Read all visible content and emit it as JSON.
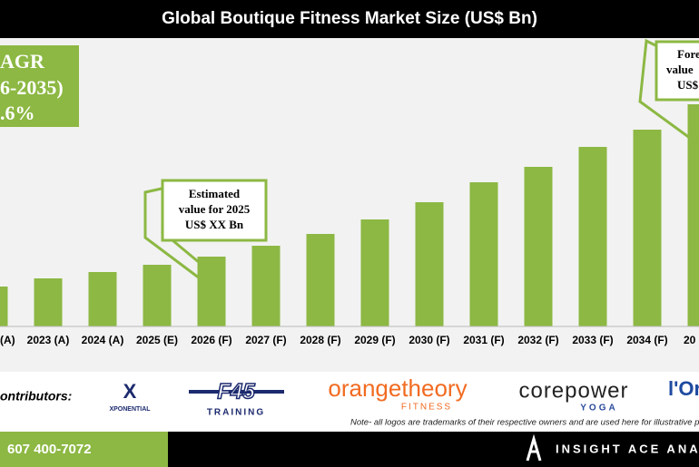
{
  "chart_data": {
    "type": "bar",
    "title": "Global Boutique Fitness Market Size (US$ Bn)",
    "categories": [
      "(A)",
      "2023 (A)",
      "2024 (A)",
      "2025 (E)",
      "2026 (F)",
      "2027 (F)",
      "2028 (F)",
      "2029 (F)",
      "2030 (F)",
      "2031 (F)",
      "2032 (F)",
      "2033 (F)",
      "2034 (F)",
      "20"
    ],
    "values": [
      44,
      53,
      60,
      68,
      77,
      89,
      102,
      118,
      137,
      159,
      176,
      198,
      217,
      245
    ],
    "color": "#8cb843",
    "ylim": [
      0,
      260
    ]
  },
  "cagr_box": {
    "lines": [
      "AGR",
      "6-2035)",
      ".6%"
    ]
  },
  "callouts": [
    {
      "lines": [
        "Estimated",
        "value for 2025",
        "US$ XX Bn"
      ]
    },
    {
      "lines": [
        "Fore",
        "value",
        "US$"
      ]
    }
  ],
  "contributors": {
    "label": "ontributors:",
    "logos": [
      {
        "mark": "X",
        "text": "XPONENTIAL"
      },
      {
        "mark": "F45",
        "text": "TRAINING"
      },
      {
        "mark": "orangetheory",
        "text": "FITNESS"
      },
      {
        "mark": "corepower",
        "text": "YOGA"
      },
      {
        "mark": "l'Or",
        "text": ""
      }
    ],
    "note": "Note- all logos are trademarks of their respective owners and are used here for illustrative p"
  },
  "footer": {
    "phone": "607 400-7072",
    "brand": "INSIGHT ACE ANA"
  }
}
